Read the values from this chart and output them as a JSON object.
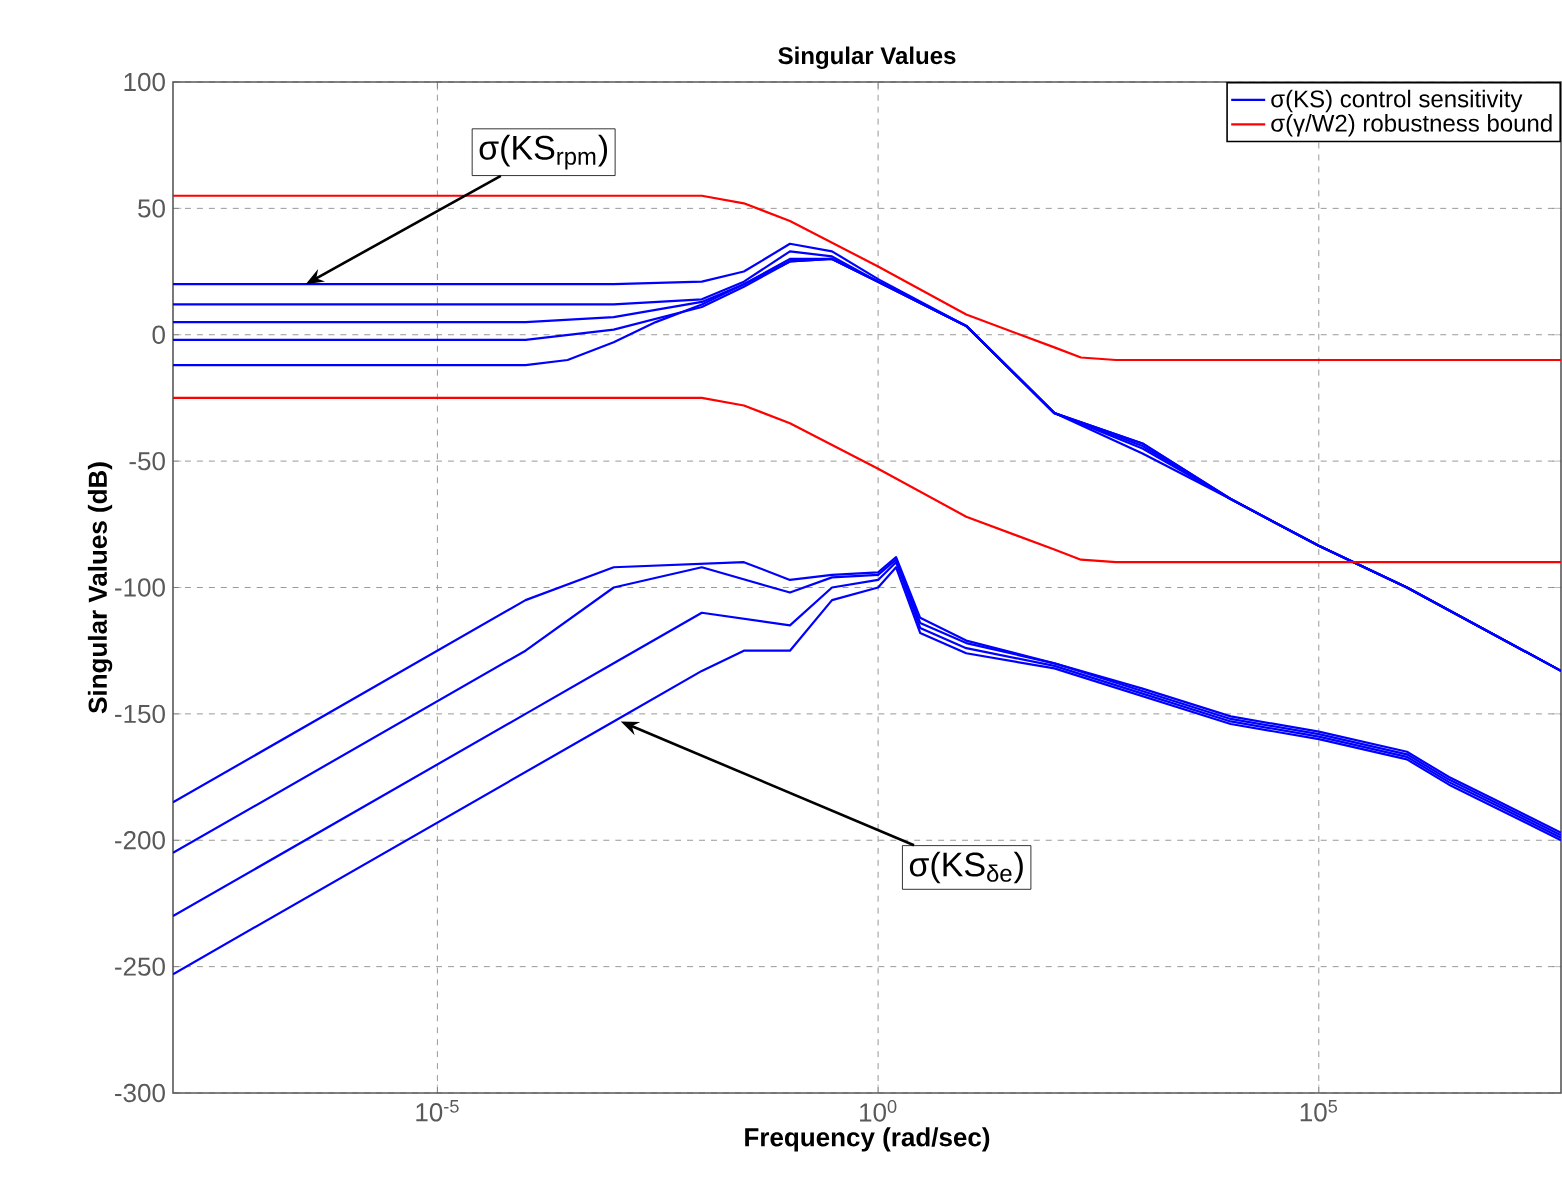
{
  "chart_data": {
    "type": "line",
    "title": "Singular Values",
    "xlabel": "Frequency (rad/sec)",
    "ylabel": "Singular Values (dB)",
    "log": "x",
    "grid": true,
    "legend": "top right",
    "marker": "none",
    "line_style": "solid",
    "xlim": [
      1e-08,
      56000000.0
    ],
    "ylim": [
      -300,
      100
    ],
    "xticks": [
      {
        "value": 1e-05,
        "label": "10$^{-5}$"
      },
      {
        "value": 1,
        "label": "10$^{0}$"
      },
      {
        "value": 100000.0,
        "label": "10$^{5}$"
      }
    ],
    "yticks": [
      -300,
      -250,
      -200,
      -150,
      -100,
      -50,
      0,
      50,
      100
    ],
    "annotations": [
      {
        "text": "σ(KS$_{rpm}$)",
        "x": 3.2e-07,
        "y": 20
      },
      {
        "text": "σ(KS$_{δe}$)",
        "x": 0.0012,
        "y": -153
      }
    ],
    "series": [
      {
        "name": "σ(KS) control sensitivity",
        "color": "#0000ff",
        "x": [
          1e-08,
          0.001,
          0.01,
          0.03,
          0.1,
          0.3,
          1,
          10,
          100,
          1000,
          10000.0,
          100000.0,
          1000000.0,
          56000000.0
        ],
        "values": [
          20,
          20,
          21,
          25,
          36,
          33,
          22,
          3.5,
          -31,
          -47,
          -65,
          -83.5,
          -100,
          -133
        ]
      },
      {
        "color": "#0000ff",
        "x": [
          1e-08,
          0.001,
          0.01,
          0.03,
          0.1,
          0.3,
          1,
          10,
          100,
          1000,
          10000.0,
          100000.0,
          1000000.0,
          56000000.0
        ],
        "values": [
          12,
          12,
          14,
          21,
          33,
          31,
          21,
          3.5,
          -31,
          -45,
          -65,
          -83.5,
          -100,
          -133
        ]
      },
      {
        "color": "#0000ff",
        "x": [
          1e-08,
          0.0001,
          0.001,
          0.01,
          0.03,
          0.1,
          0.3,
          1,
          10,
          100,
          1000,
          10000.0,
          100000.0,
          1000000.0,
          56000000.0
        ],
        "values": [
          5,
          5,
          7,
          13,
          20,
          30,
          30,
          21,
          3.5,
          -31,
          -44,
          -65,
          -83.5,
          -100,
          -133
        ]
      },
      {
        "color": "#0000ff",
        "x": [
          1e-08,
          0.0001,
          0.001,
          0.01,
          0.03,
          0.1,
          0.3,
          1,
          10,
          100,
          1000,
          10000.0,
          100000.0,
          1000000.0,
          56000000.0
        ],
        "values": [
          -2,
          -2,
          2,
          11,
          19,
          29,
          30,
          21,
          3.5,
          -31,
          -43,
          -65,
          -83.5,
          -100,
          -133
        ]
      },
      {
        "color": "#0000ff",
        "x": [
          1e-08,
          0.0001,
          0.0003,
          0.001,
          0.003,
          0.01,
          0.03,
          0.1,
          0.3,
          1,
          10,
          100,
          1000,
          10000.0,
          100000.0,
          1000000.0,
          56000000.0
        ],
        "values": [
          -12,
          -12,
          -10,
          -3,
          5,
          12,
          20,
          29,
          30,
          21,
          3.5,
          -31,
          -43,
          -65,
          -83.5,
          -100,
          -133
        ]
      },
      {
        "name": "σ(γ/W2) robustness bound",
        "color": "#ff0000",
        "x": [
          1e-08,
          0.01,
          0.03,
          0.1,
          1,
          10,
          100,
          200,
          500,
          56000000.0
        ],
        "values": [
          55,
          55,
          52,
          45,
          27,
          8,
          -5,
          -9,
          -10,
          -10
        ]
      },
      {
        "color": "#ff0000",
        "x": [
          1e-08,
          0.01,
          0.03,
          0.1,
          1,
          10,
          100,
          200,
          500,
          56000000.0
        ],
        "values": [
          -25,
          -25,
          -28,
          -35,
          -53,
          -72,
          -85,
          -89,
          -90,
          -90
        ]
      },
      {
        "color": "#0000ff",
        "x": [
          1e-08,
          0.0001,
          0.001,
          0.03,
          0.1,
          0.3,
          1,
          1.6,
          3,
          10,
          100,
          1000,
          10000.0,
          100000.0,
          1000000.0,
          3000000.0,
          10000000.0,
          56000000.0
        ],
        "values": [
          -185,
          -105,
          -92,
          -90,
          -97,
          -95,
          -94,
          -88,
          -112,
          -121,
          -130,
          -140,
          -151,
          -157,
          -165,
          -175,
          -184,
          -197
        ]
      },
      {
        "color": "#0000ff",
        "x": [
          1e-08,
          0.0001,
          0.001,
          0.01,
          0.1,
          0.3,
          1,
          1.6,
          3,
          10,
          100,
          1000,
          10000.0,
          100000.0,
          1000000.0,
          3000000.0,
          10000000.0,
          56000000.0
        ],
        "values": [
          -205,
          -125,
          -100,
          -92,
          -102,
          -96,
          -95,
          -89,
          -114,
          -122,
          -130,
          -141,
          -152,
          -158,
          -166,
          -176,
          -185,
          -198
        ]
      },
      {
        "color": "#0000ff",
        "x": [
          1e-08,
          0.0001,
          0.001,
          0.01,
          0.1,
          0.3,
          1,
          1.6,
          3,
          10,
          100,
          1000,
          10000.0,
          100000.0,
          1000000.0,
          3000000.0,
          10000000.0,
          56000000.0
        ],
        "values": [
          -230,
          -150,
          -130,
          -110,
          -115,
          -100,
          -97,
          -90,
          -116,
          -124,
          -131,
          -142,
          -153,
          -159,
          -167,
          -177,
          -186,
          -199
        ]
      },
      {
        "color": "#0000ff",
        "x": [
          1e-08,
          0.001,
          0.01,
          0.03,
          0.1,
          0.3,
          1,
          1.6,
          3,
          10,
          100,
          1000,
          10000.0,
          100000.0,
          1000000.0,
          3000000.0,
          10000000.0,
          56000000.0
        ],
        "values": [
          -253,
          -153,
          -133,
          -125,
          -125,
          -105,
          -100,
          -92,
          -118,
          -126,
          -132,
          -143,
          -154,
          -160,
          -168,
          -178,
          -187,
          -200
        ]
      }
    ]
  }
}
